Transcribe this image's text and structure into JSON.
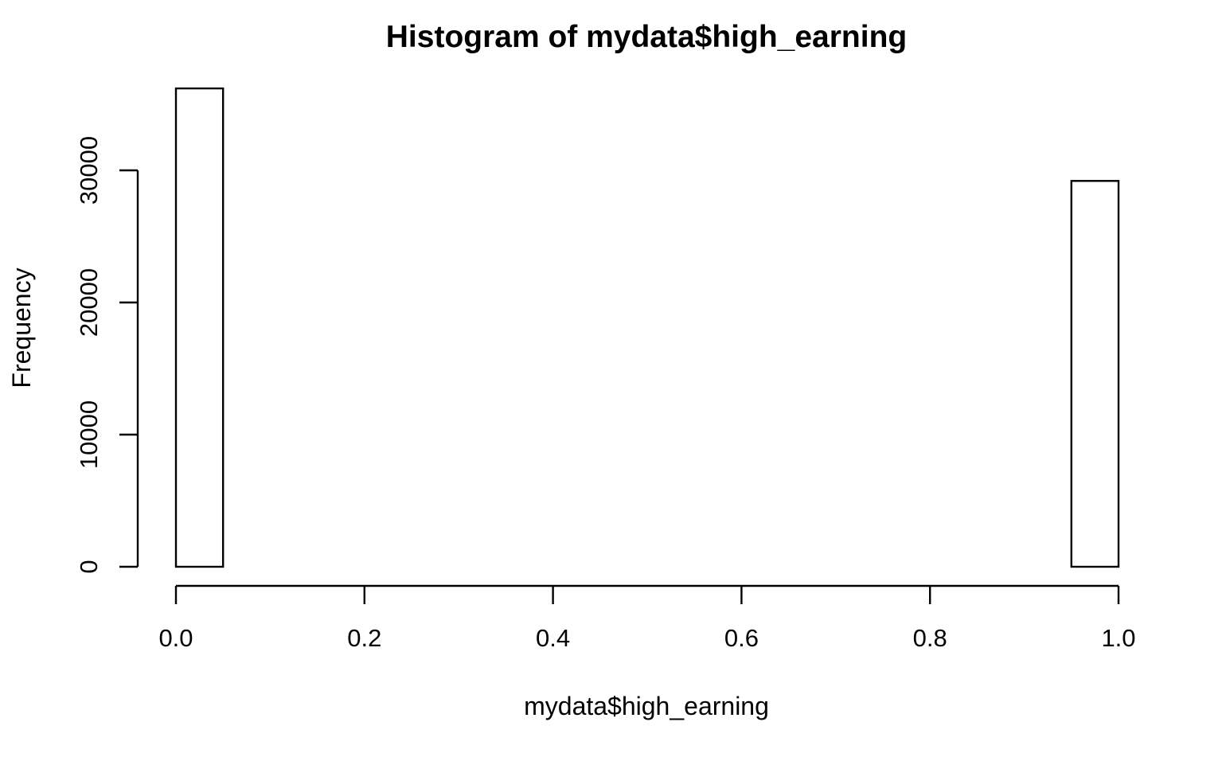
{
  "chart_data": {
    "type": "bar",
    "title": "Histogram of mydata$high_earning",
    "xlabel": "mydata$high_earning",
    "ylabel": "Frequency",
    "bin_width": 0.05,
    "bins": [
      {
        "start": 0.0,
        "end": 0.05,
        "count": 36200
      },
      {
        "start": 0.05,
        "end": 0.1,
        "count": 0
      },
      {
        "start": 0.1,
        "end": 0.15,
        "count": 0
      },
      {
        "start": 0.15,
        "end": 0.2,
        "count": 0
      },
      {
        "start": 0.2,
        "end": 0.25,
        "count": 0
      },
      {
        "start": 0.25,
        "end": 0.3,
        "count": 0
      },
      {
        "start": 0.3,
        "end": 0.35,
        "count": 0
      },
      {
        "start": 0.35,
        "end": 0.4,
        "count": 0
      },
      {
        "start": 0.4,
        "end": 0.45,
        "count": 0
      },
      {
        "start": 0.45,
        "end": 0.5,
        "count": 0
      },
      {
        "start": 0.5,
        "end": 0.55,
        "count": 0
      },
      {
        "start": 0.55,
        "end": 0.6,
        "count": 0
      },
      {
        "start": 0.6,
        "end": 0.65,
        "count": 0
      },
      {
        "start": 0.65,
        "end": 0.7,
        "count": 0
      },
      {
        "start": 0.7,
        "end": 0.75,
        "count": 0
      },
      {
        "start": 0.75,
        "end": 0.8,
        "count": 0
      },
      {
        "start": 0.8,
        "end": 0.85,
        "count": 0
      },
      {
        "start": 0.85,
        "end": 0.9,
        "count": 0
      },
      {
        "start": 0.9,
        "end": 0.95,
        "count": 0
      },
      {
        "start": 0.95,
        "end": 1.0,
        "count": 29200
      }
    ],
    "xlim": [
      0,
      1
    ],
    "ylim": [
      0,
      36200
    ],
    "x_ticks": [
      {
        "value": 0.0,
        "label": "0.0"
      },
      {
        "value": 0.2,
        "label": "0.2"
      },
      {
        "value": 0.4,
        "label": "0.4"
      },
      {
        "value": 0.6,
        "label": "0.6"
      },
      {
        "value": 0.8,
        "label": "0.8"
      },
      {
        "value": 1.0,
        "label": "1.0"
      }
    ],
    "y_ticks": [
      {
        "value": 0,
        "label": "0"
      },
      {
        "value": 10000,
        "label": "10000"
      },
      {
        "value": 20000,
        "label": "20000"
      },
      {
        "value": 30000,
        "label": "30000"
      }
    ],
    "grid": false,
    "legend": "none",
    "colors": {
      "bar_fill": "#ffffff",
      "bar_stroke": "#000000"
    }
  }
}
